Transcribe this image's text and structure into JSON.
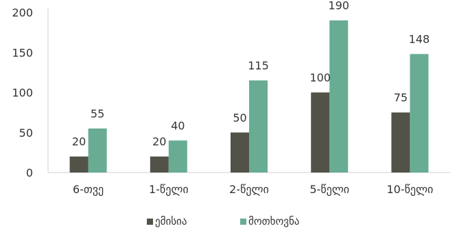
{
  "chart_data": {
    "type": "bar",
    "title": "",
    "xlabel": "",
    "ylabel": "",
    "categories": [
      "6-თვე",
      "1-წელი",
      "2-წელი",
      "5-წელი",
      "10-წელი"
    ],
    "series": [
      {
        "name": "ემისია",
        "color": "#525248",
        "values": [
          20,
          20,
          50,
          100,
          75
        ]
      },
      {
        "name": "მოთხოვნა",
        "color": "#68ad93",
        "values": [
          55,
          40,
          115,
          190,
          148
        ]
      }
    ],
    "ylim": [
      0,
      200
    ],
    "yticks": [
      0,
      50,
      100,
      150,
      200
    ],
    "grid": false,
    "legend_position": "bottom"
  }
}
